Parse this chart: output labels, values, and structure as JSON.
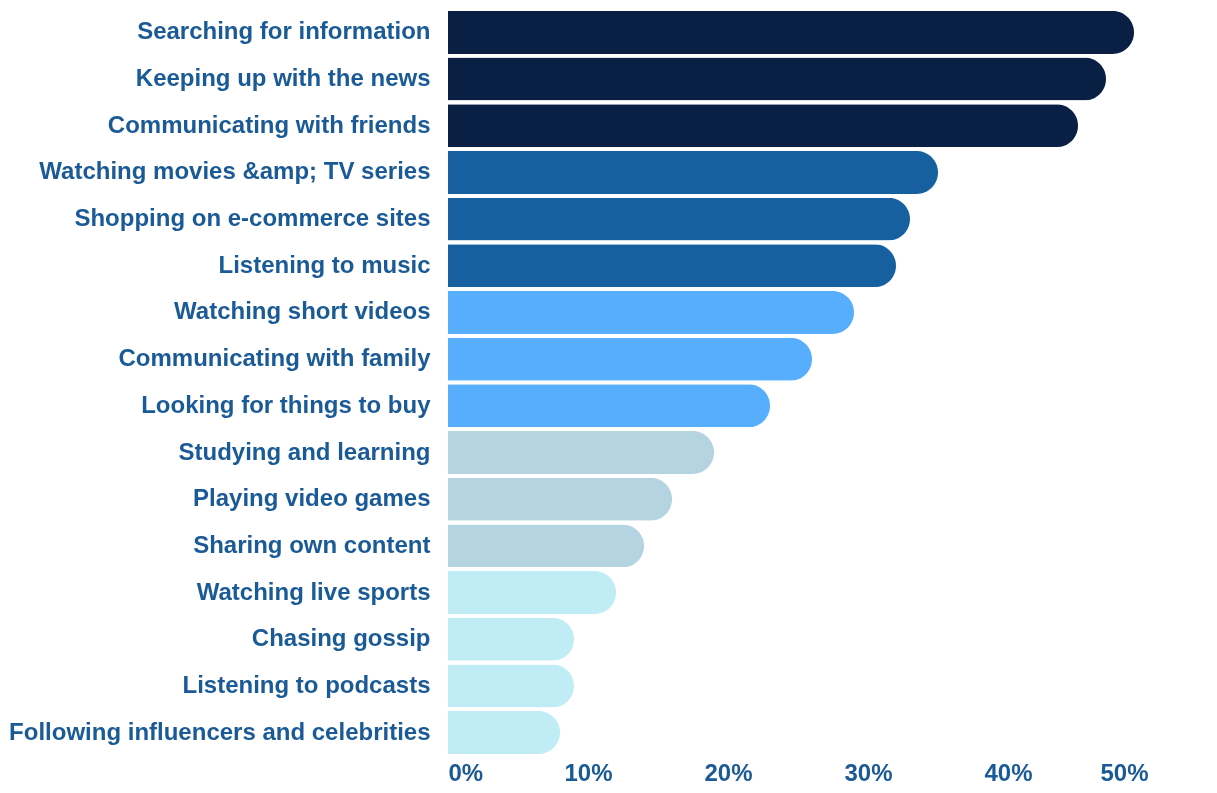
{
  "chart_data": {
    "type": "bar",
    "orientation": "horizontal",
    "categories": [
      "Searching for information",
      "Keeping up with the news",
      "Communicating with friends",
      "Watching movies &amp; TV series",
      "Shopping on e-commerce sites",
      "Listening to music",
      "Watching short videos",
      "Communicating with family",
      "Looking for things to buy",
      "Studying and learning",
      "Playing video games",
      "Sharing own content",
      "Watching live sports",
      "Chasing gossip",
      "Listening to podcasts",
      "Following influencers and celebrities"
    ],
    "values": [
      49,
      47,
      45,
      35,
      33,
      32,
      29,
      26,
      23,
      19,
      16,
      14,
      12,
      9,
      9,
      8
    ],
    "colors": [
      "#0a1f44",
      "#0a1f44",
      "#0a1f44",
      "#1660a0",
      "#1660a0",
      "#1660a0",
      "#56aefc",
      "#56aefc",
      "#56aefc",
      "#b3d4e0",
      "#b3d4e0",
      "#b3d4e0",
      "#c0edf5",
      "#c0edf5",
      "#c0edf5",
      "#c0edf5"
    ],
    "xlim": [
      0,
      50
    ],
    "xticks": [
      {
        "value": 0,
        "label": "0%"
      },
      {
        "value": 10,
        "label": "10%"
      },
      {
        "value": 20,
        "label": "20%"
      },
      {
        "value": 30,
        "label": "30%"
      },
      {
        "value": 40,
        "label": "40%"
      },
      {
        "value": 50,
        "label": "50%"
      }
    ],
    "grid": false
  }
}
